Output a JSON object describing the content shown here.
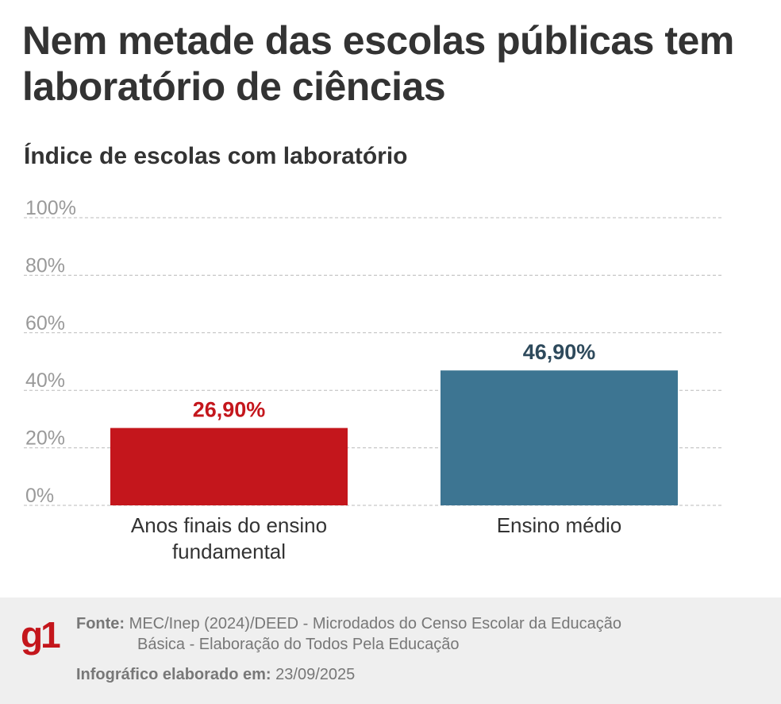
{
  "chart_data": {
    "type": "bar",
    "title": "Nem metade das escolas públicas tem laboratório de ciências",
    "subtitle": "Índice de escolas com laboratório",
    "categories": [
      "Anos finais do ensino fundamental",
      "Ensino médio"
    ],
    "category_lines": [
      [
        "Anos finais do ensino",
        "fundamental"
      ],
      [
        "Ensino médio"
      ]
    ],
    "values": [
      26.9,
      46.9
    ],
    "value_labels": [
      "26,90%",
      "46,90%"
    ],
    "colors": [
      "#c4161c",
      "#3d7592"
    ],
    "label_colors": [
      "#c4161c",
      "#2e4a5c"
    ],
    "yticks": [
      0,
      20,
      40,
      60,
      80,
      100
    ],
    "ytick_labels": [
      "0%",
      "20%",
      "40%",
      "60%",
      "80%",
      "100%"
    ],
    "ylim": [
      0,
      100
    ],
    "grid": true,
    "xlabel": "",
    "ylabel": ""
  },
  "footer": {
    "logo": "g1",
    "source_label": "Fonte:",
    "source_line1": "MEC/Inep (2024)/DEED - Microdados do Censo Escolar da Educação",
    "source_line2": "Básica - Elaboração do Todos Pela Educação",
    "date_label": "Infográfico elaborado em:",
    "date": "23/09/2025"
  }
}
